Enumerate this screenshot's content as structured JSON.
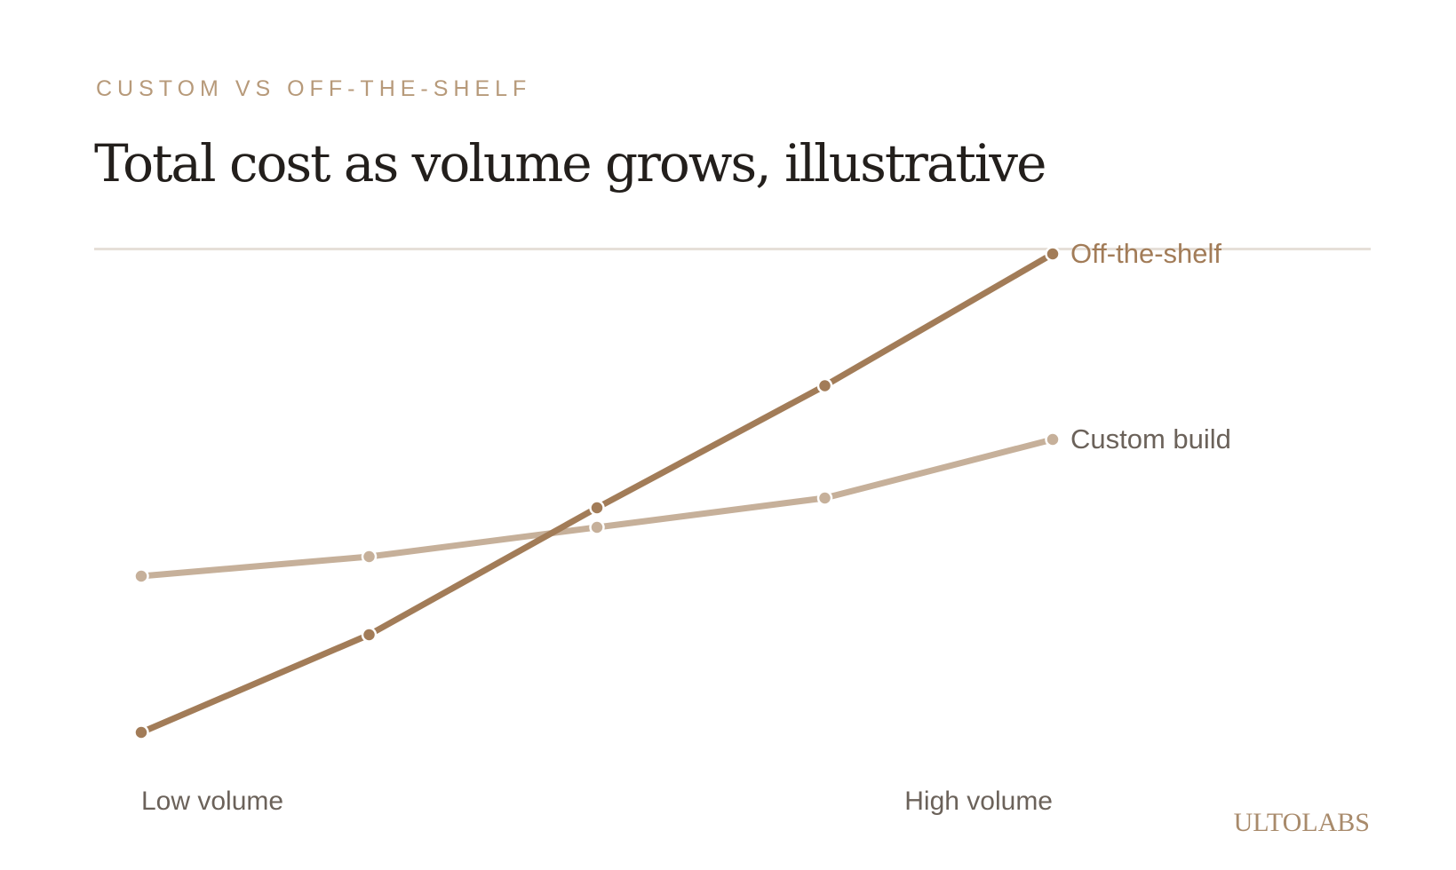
{
  "header": {
    "eyebrow": "CUSTOM VS OFF-THE-SHELF",
    "title": "Total cost as volume grows, illustrative"
  },
  "brand": {
    "name": "ULTOLABS"
  },
  "colors": {
    "off_the_shelf": "#a27c58",
    "custom_build": "#c6b09a",
    "axis_text": "#6b625a",
    "eyebrow": "#b79a7a",
    "title": "#231f1c",
    "divider": "#e6dfd8",
    "brand": "#a88a6b"
  },
  "chart_data": {
    "type": "line",
    "title": "Total cost as volume grows, illustrative",
    "x": [
      1,
      2,
      3,
      4,
      5
    ],
    "x_tick_labels": [
      "Low volume",
      "",
      "",
      "High volume",
      ""
    ],
    "xlim": [
      1,
      5
    ],
    "ylim": [
      0,
      100
    ],
    "grid": false,
    "legend": "end-of-line labels",
    "series": [
      {
        "name": "Off-the-shelf",
        "values": [
          10,
          30,
          56,
          81,
          108
        ]
      },
      {
        "name": "Custom build",
        "values": [
          42,
          46,
          52,
          58,
          70
        ]
      }
    ]
  }
}
